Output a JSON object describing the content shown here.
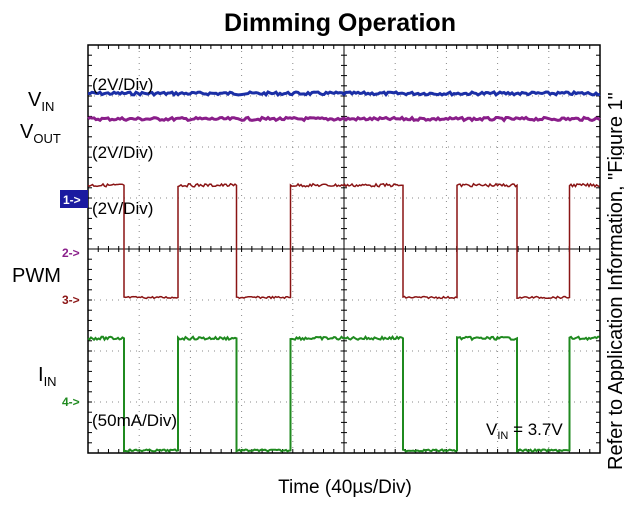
{
  "chart_data": {
    "type": "line",
    "title": "Dimming Operation",
    "xlabel": "Time (40µs/Div)",
    "x_divisions": 10,
    "y_divisions": 8,
    "traces": [
      {
        "key": "vin",
        "label": "V",
        "label_sub": "IN",
        "scale": "(2V/Div)",
        "color": "#1b2fa6",
        "kind": "flat",
        "level_div": 7.05
      },
      {
        "key": "vout",
        "label": "V",
        "label_sub": "OUT",
        "scale": "(2V/Div)",
        "color": "#8a1e8a",
        "kind": "flat",
        "level_div": 6.55
      },
      {
        "key": "pwm",
        "label": "PWM",
        "label_sub": "",
        "scale": "(2V/Div)",
        "color": "#8a1414",
        "kind": "square",
        "high_div": 5.25,
        "low_div": 3.05
      },
      {
        "key": "iin",
        "label": "I",
        "label_sub": "IN",
        "scale": "(50mA/Div)",
        "color": "#1f8a1f",
        "kind": "square",
        "high_div": 2.25,
        "low_div": 0.05
      }
    ],
    "square_edges_div": [
      [
        0.7,
        1.75
      ],
      [
        2.9,
        3.95
      ],
      [
        6.15,
        7.2
      ],
      [
        8.35,
        9.4
      ],
      [
        1.75,
        2.85
      ],
      [
        3.95,
        5.0
      ],
      [
        7.2,
        8.3
      ],
      [
        9.4,
        10.0
      ]
    ],
    "channel_markers": [
      "1->",
      "2->",
      "3->",
      "4->"
    ],
    "annotation": {
      "label": "V",
      "sub": "IN",
      "rest": " = 3.7V"
    },
    "side_note": "Refer to Application Information, \"Figure 1\""
  }
}
